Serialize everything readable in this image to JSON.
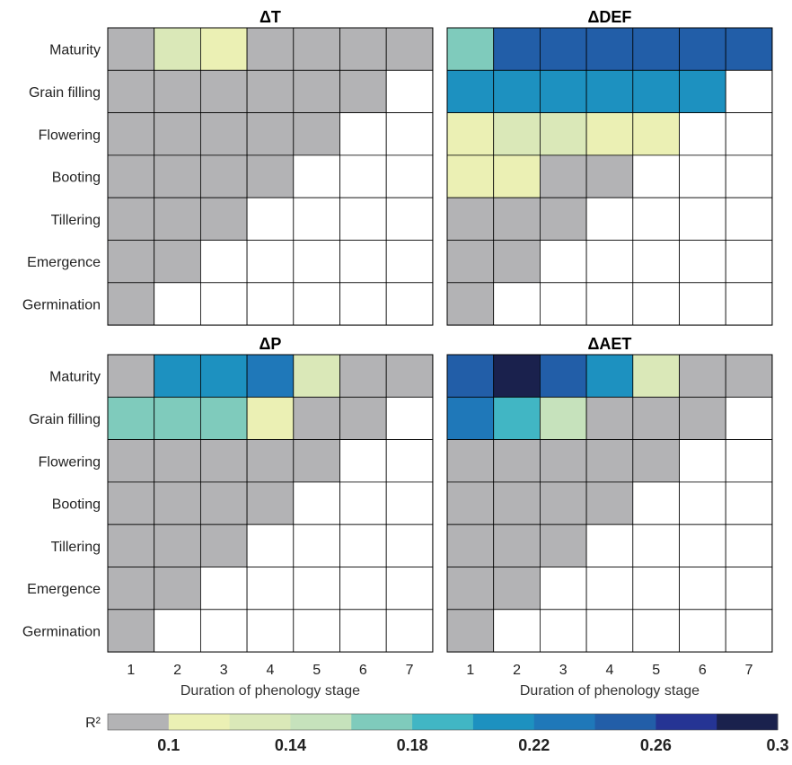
{
  "chart_data": {
    "type": "heatmap",
    "colorbar": {
      "label": "R²",
      "ticks": [
        "0.1",
        "0.14",
        "0.18",
        "0.22",
        "0.26",
        "0.3"
      ],
      "range": [
        0.08,
        0.3
      ],
      "bins": [
        {
          "from": 0.08,
          "to": 0.1,
          "color": "#b3b3b5"
        },
        {
          "from": 0.1,
          "to": 0.12,
          "color": "#ebf0b4"
        },
        {
          "from": 0.12,
          "to": 0.14,
          "color": "#dae8b8"
        },
        {
          "from": 0.14,
          "to": 0.16,
          "color": "#c6e2bc"
        },
        {
          "from": 0.16,
          "to": 0.18,
          "color": "#7fcbbc"
        },
        {
          "from": 0.18,
          "to": 0.2,
          "color": "#41b6c4"
        },
        {
          "from": 0.2,
          "to": 0.22,
          "color": "#1d91c0"
        },
        {
          "from": 0.22,
          "to": 0.24,
          "color": "#1f78b9"
        },
        {
          "from": 0.24,
          "to": 0.26,
          "color": "#225ea8"
        },
        {
          "from": 0.26,
          "to": 0.28,
          "color": "#253494"
        },
        {
          "from": 0.28,
          "to": 0.3,
          "color": "#1a214d"
        }
      ]
    },
    "y_categories": [
      "Maturity",
      "Grain filling",
      "Flowering",
      "Booting",
      "Tillering",
      "Emergence",
      "Germination"
    ],
    "x_categories": [
      "1",
      "2",
      "3",
      "4",
      "5",
      "6",
      "7"
    ],
    "xlabel": "Duration of phenology stage",
    "panels": [
      {
        "title": "ΔT",
        "values": [
          [
            0.08,
            0.13,
            0.11,
            0.08,
            0.08,
            0.08,
            0.08
          ],
          [
            0.08,
            0.08,
            0.08,
            0.08,
            0.08,
            0.08,
            null
          ],
          [
            0.08,
            0.08,
            0.08,
            0.08,
            0.08,
            null,
            null
          ],
          [
            0.08,
            0.08,
            0.08,
            0.08,
            null,
            null,
            null
          ],
          [
            0.08,
            0.08,
            0.08,
            null,
            null,
            null,
            null
          ],
          [
            0.08,
            0.08,
            null,
            null,
            null,
            null,
            null
          ],
          [
            0.08,
            null,
            null,
            null,
            null,
            null,
            null
          ]
        ]
      },
      {
        "title": "ΔDEF",
        "values": [
          [
            0.17,
            0.25,
            0.25,
            0.25,
            0.25,
            0.25,
            0.25
          ],
          [
            0.21,
            0.21,
            0.21,
            0.21,
            0.21,
            0.21,
            null
          ],
          [
            0.11,
            0.13,
            0.13,
            0.11,
            0.11,
            null,
            null
          ],
          [
            0.11,
            0.11,
            0.08,
            0.08,
            null,
            null,
            null
          ],
          [
            0.08,
            0.08,
            0.08,
            null,
            null,
            null,
            null
          ],
          [
            0.08,
            0.08,
            null,
            null,
            null,
            null,
            null
          ],
          [
            0.08,
            null,
            null,
            null,
            null,
            null,
            null
          ]
        ]
      },
      {
        "title": "ΔP",
        "values": [
          [
            0.08,
            0.21,
            0.21,
            0.23,
            0.13,
            0.08,
            0.08
          ],
          [
            0.17,
            0.17,
            0.17,
            0.11,
            0.08,
            0.08,
            null
          ],
          [
            0.08,
            0.08,
            0.08,
            0.08,
            0.08,
            null,
            null
          ],
          [
            0.08,
            0.08,
            0.08,
            0.08,
            null,
            null,
            null
          ],
          [
            0.08,
            0.08,
            0.08,
            null,
            null,
            null,
            null
          ],
          [
            0.08,
            0.08,
            null,
            null,
            null,
            null,
            null
          ],
          [
            0.08,
            null,
            null,
            null,
            null,
            null,
            null
          ]
        ]
      },
      {
        "title": "ΔAET",
        "values": [
          [
            0.25,
            0.29,
            0.25,
            0.21,
            0.13,
            0.08,
            0.08
          ],
          [
            0.23,
            0.19,
            0.15,
            0.08,
            0.08,
            0.08,
            null
          ],
          [
            0.08,
            0.08,
            0.08,
            0.08,
            0.08,
            null,
            null
          ],
          [
            0.08,
            0.08,
            0.08,
            0.08,
            null,
            null,
            null
          ],
          [
            0.08,
            0.08,
            0.08,
            null,
            null,
            null,
            null
          ],
          [
            0.08,
            0.08,
            null,
            null,
            null,
            null,
            null
          ],
          [
            0.08,
            null,
            null,
            null,
            null,
            null,
            null
          ]
        ]
      }
    ]
  }
}
